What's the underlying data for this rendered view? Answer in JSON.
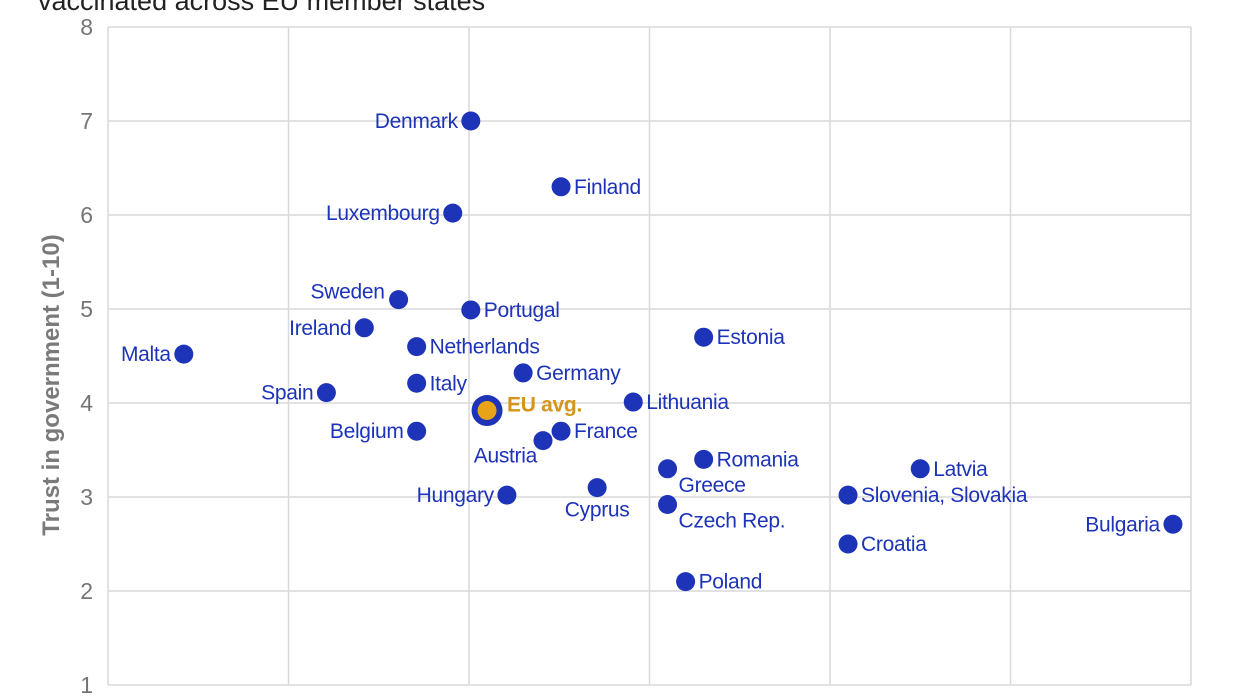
{
  "chart_data": {
    "type": "scatter",
    "title": "vaccinated across EU member states",
    "ylabel": "Trust in government (1-10)",
    "xlabel": "",
    "ylim": [
      1,
      8
    ],
    "yticks": [
      1,
      2,
      3,
      4,
      5,
      6,
      7,
      8
    ],
    "xlim": [
      0,
      6
    ],
    "xgrid": [
      0,
      1,
      2,
      3,
      4,
      5,
      6
    ],
    "grid": true,
    "colors": {
      "point": "#1d33b8",
      "highlight": "#e8a317",
      "highlight_label": "#d4951a",
      "grid": "#d9d9d9"
    },
    "points": [
      {
        "label": "Malta",
        "x": 0.42,
        "y": 4.52,
        "pos": "left"
      },
      {
        "label": "Denmark",
        "x": 2.01,
        "y": 7.0,
        "pos": "left"
      },
      {
        "label": "Finland",
        "x": 2.51,
        "y": 6.3,
        "pos": "right"
      },
      {
        "label": "Luxembourg",
        "x": 1.91,
        "y": 6.02,
        "pos": "left"
      },
      {
        "label": "Sweden",
        "x": 1.61,
        "y": 5.1,
        "pos": "upleft"
      },
      {
        "label": "Portugal",
        "x": 2.01,
        "y": 4.99,
        "pos": "right"
      },
      {
        "label": "Ireland",
        "x": 1.42,
        "y": 4.8,
        "pos": "left"
      },
      {
        "label": "Netherlands",
        "x": 1.71,
        "y": 4.6,
        "pos": "right"
      },
      {
        "label": "Estonia",
        "x": 3.3,
        "y": 4.7,
        "pos": "right"
      },
      {
        "label": "Germany",
        "x": 2.3,
        "y": 4.32,
        "pos": "right"
      },
      {
        "label": "Spain",
        "x": 1.21,
        "y": 4.11,
        "pos": "left"
      },
      {
        "label": "Italy",
        "x": 1.71,
        "y": 4.21,
        "pos": "right"
      },
      {
        "label": "Lithuania",
        "x": 2.91,
        "y": 4.01,
        "pos": "right"
      },
      {
        "label": "Belgium",
        "x": 1.71,
        "y": 3.7,
        "pos": "left"
      },
      {
        "label": "France",
        "x": 2.51,
        "y": 3.7,
        "pos": "right"
      },
      {
        "label": "Austria",
        "x": 2.41,
        "y": 3.6,
        "pos": "belowleft"
      },
      {
        "label": "Romania",
        "x": 3.3,
        "y": 3.4,
        "pos": "right"
      },
      {
        "label": "Greece",
        "x": 3.1,
        "y": 3.3,
        "pos": "belowright"
      },
      {
        "label": "Latvia",
        "x": 4.5,
        "y": 3.3,
        "pos": "right"
      },
      {
        "label": "Hungary",
        "x": 2.21,
        "y": 3.02,
        "pos": "left"
      },
      {
        "label": "Cyprus",
        "x": 2.71,
        "y": 3.1,
        "pos": "below"
      },
      {
        "label": "Slovenia, Slovakia",
        "x": 4.1,
        "y": 3.02,
        "pos": "right"
      },
      {
        "label": "Czech Rep.",
        "x": 3.1,
        "y": 2.92,
        "pos": "belowright"
      },
      {
        "label": "Bulgaria",
        "x": 5.9,
        "y": 2.71,
        "pos": "left"
      },
      {
        "label": "Croatia",
        "x": 4.1,
        "y": 2.5,
        "pos": "right"
      },
      {
        "label": "Poland",
        "x": 3.2,
        "y": 2.1,
        "pos": "right"
      }
    ],
    "highlight": {
      "label": "EU avg.",
      "x": 2.1,
      "y": 3.92,
      "pos": "right"
    }
  }
}
